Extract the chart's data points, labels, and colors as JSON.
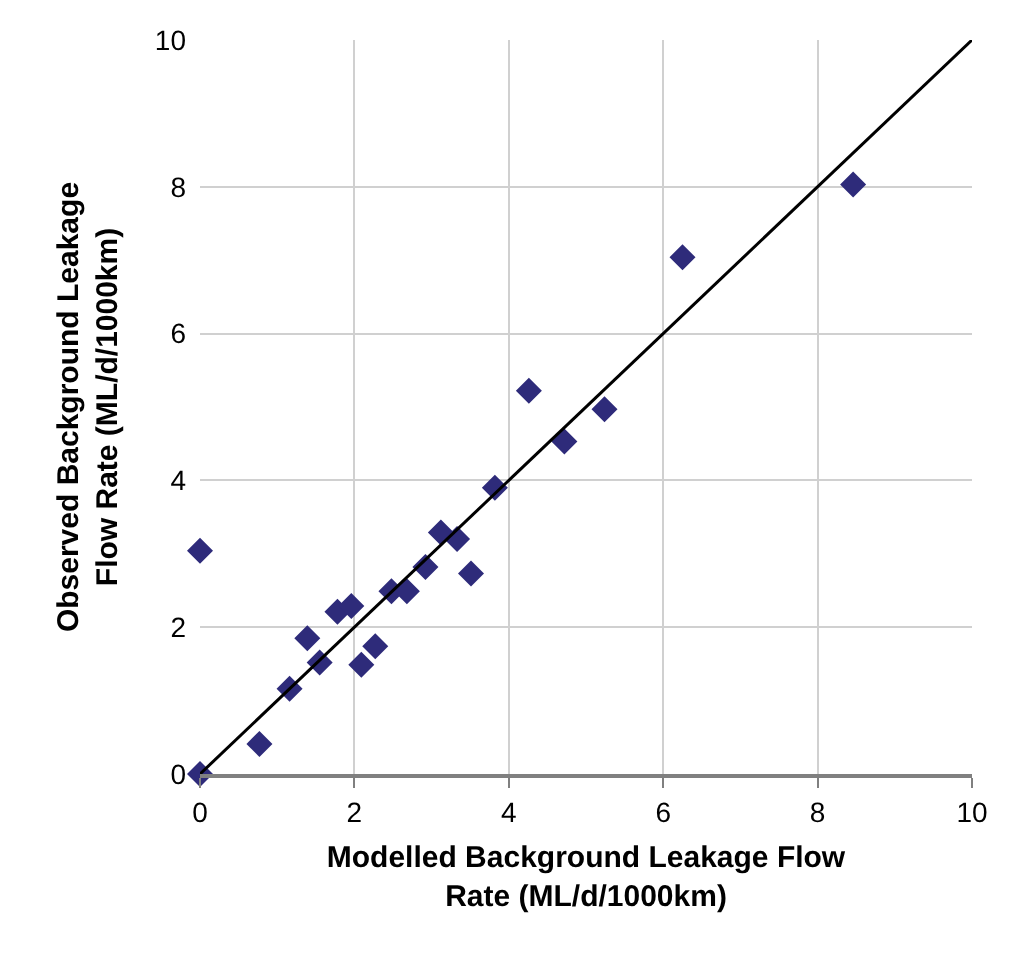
{
  "chart_data": {
    "type": "scatter",
    "xlabel": "Modelled Background Leakage Flow\nRate (ML/d/1000km)",
    "ylabel": "Observed Background Leakage\nFlow Rate (ML/d/1000km)",
    "xlim": [
      0,
      10
    ],
    "ylim": [
      0,
      10
    ],
    "xticks": [
      0,
      2,
      4,
      6,
      8,
      10
    ],
    "yticks": [
      0,
      2,
      4,
      6,
      8,
      10
    ],
    "grid": true,
    "marker": "diamond",
    "series": [
      {
        "color": "#2e2b7a",
        "x": [
          0,
          0,
          0.77,
          1.16,
          1.39,
          1.55,
          1.78,
          1.96,
          2.09,
          2.27,
          2.48,
          2.68,
          2.92,
          3.12,
          3.33,
          3.51,
          3.82,
          4.26,
          4.72,
          5.24,
          6.25,
          8.46
        ],
        "values": [
          0,
          3.04,
          0.41,
          1.16,
          1.85,
          1.52,
          2.21,
          2.29,
          1.49,
          1.74,
          2.49,
          2.49,
          2.82,
          3.29,
          3.2,
          2.73,
          3.9,
          5.22,
          4.53,
          4.97,
          7.04,
          8.03
        ]
      },
      {
        "type": "line",
        "color": "#000000",
        "marker": "none",
        "line_style": "solid",
        "x": [
          0,
          10
        ],
        "values": [
          0,
          10
        ]
      }
    ]
  }
}
